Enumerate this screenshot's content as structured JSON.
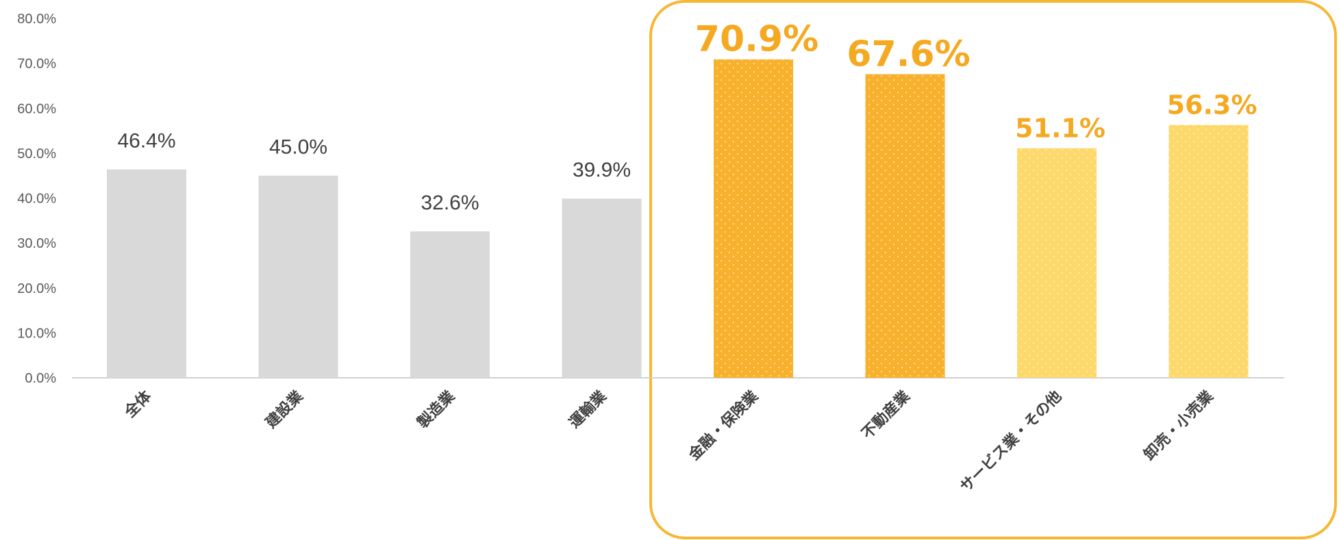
{
  "chart_data": {
    "type": "bar",
    "categories": [
      "全体",
      "建設業",
      "製造業",
      "運輸業",
      "金融・保険業",
      "不動産業",
      "サービス業・その他",
      "卸売・小売業"
    ],
    "values": [
      46.4,
      45.0,
      32.6,
      39.9,
      70.9,
      67.6,
      51.1,
      56.3
    ],
    "data_labels": [
      "46.4%",
      "45.0%",
      "32.6%",
      "39.9%",
      "70.9%",
      "67.6%",
      "51.1%",
      "56.3%"
    ],
    "y_ticks": [
      "0.0%",
      "10.0%",
      "20.0%",
      "30.0%",
      "40.0%",
      "50.0%",
      "60.0%",
      "70.0%",
      "80.0%"
    ],
    "ylim": [
      0,
      80
    ],
    "grid": false,
    "highlight_group": [
      4,
      5,
      6,
      7
    ],
    "colors": {
      "default_bar": "#D9D9D9",
      "strong_bar": "#F8B12C",
      "light_bar": "#FDD86A",
      "highlight_frame": "#F7B733",
      "emphasis_label": "#F5A921",
      "normal_label": "#404040",
      "axis": "#D0D0D0"
    },
    "bar_styles": [
      "default",
      "default",
      "default",
      "default",
      "strong",
      "strong",
      "light",
      "light"
    ]
  }
}
